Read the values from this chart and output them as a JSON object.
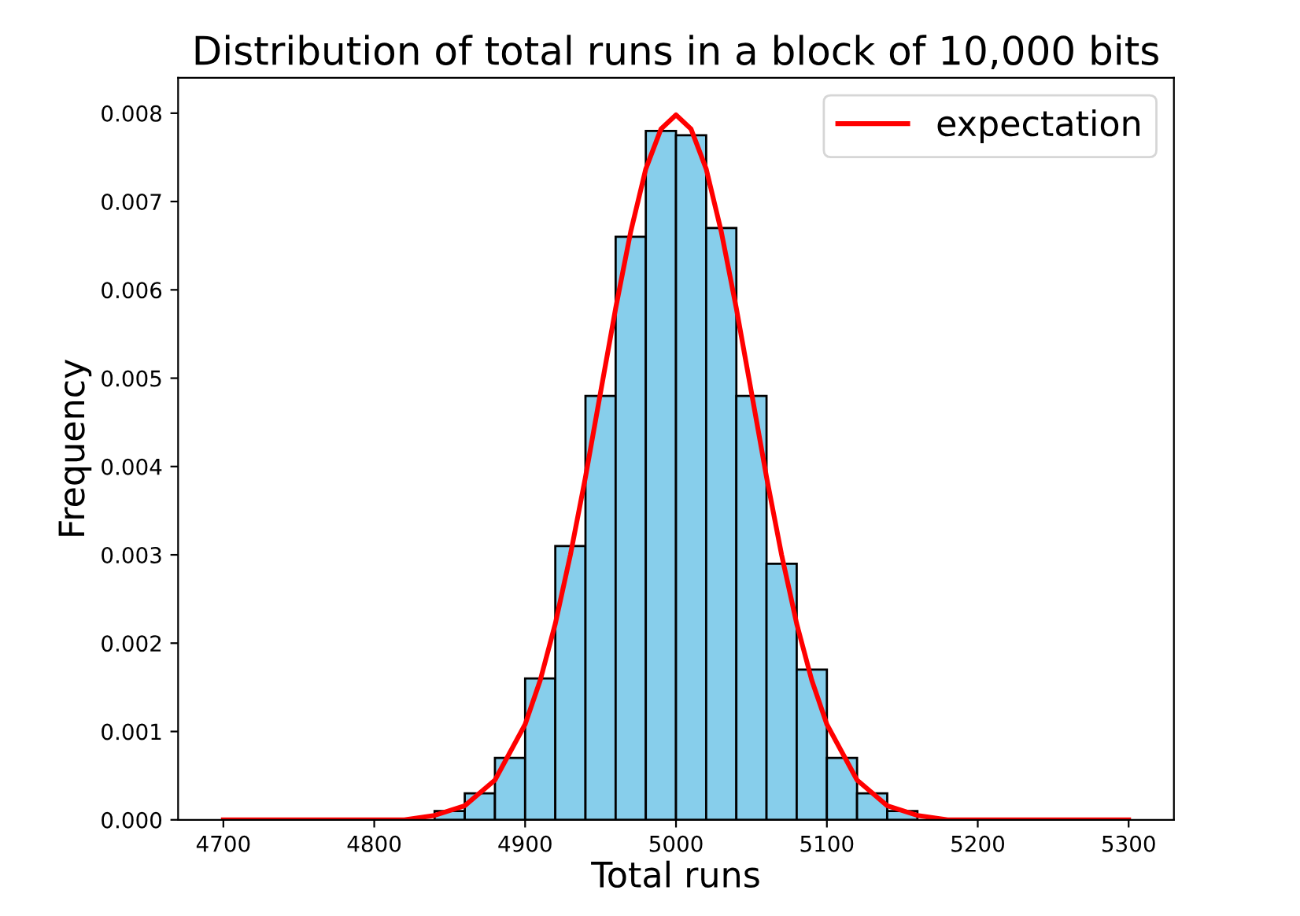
{
  "chart_data": {
    "type": "histogram",
    "title": "Distribution of total runs in a block of 10,000 bits",
    "xlabel": "Total runs",
    "ylabel": "Frequency",
    "bins": [
      4840,
      4860,
      4880,
      4900,
      4920,
      4940,
      4960,
      4980,
      5000,
      5020,
      5040,
      5060,
      5080,
      5100,
      5120,
      5140,
      5160
    ],
    "values": [
      0.0001,
      0.0003,
      0.0007,
      0.0016,
      0.0031,
      0.0048,
      0.0066,
      0.0078,
      0.00775,
      0.0067,
      0.0048,
      0.0029,
      0.0017,
      0.0007,
      0.0003,
      0.0001
    ],
    "color": "#87ceeb",
    "series": [
      {
        "name": "expectation",
        "type": "line",
        "color": "#ff0000",
        "x": [
          4700,
          4750,
          4800,
          4820,
          4840,
          4860,
          4880,
          4900,
          4910,
          4920,
          4930,
          4940,
          4950,
          4960,
          4970,
          4980,
          4990,
          5000,
          5010,
          5020,
          5030,
          5040,
          5050,
          5060,
          5070,
          5080,
          5090,
          5100,
          5120,
          5140,
          5160,
          5180,
          5200,
          5250,
          5300
        ],
        "values": [
          0,
          0,
          0,
          0,
          5e-05,
          0.00016,
          0.00045,
          0.00108,
          0.00158,
          0.00222,
          0.003,
          0.00388,
          0.00484,
          0.00579,
          0.00666,
          0.00737,
          0.00782,
          0.00798,
          0.00782,
          0.00737,
          0.00666,
          0.00579,
          0.00484,
          0.00388,
          0.003,
          0.00222,
          0.00158,
          0.00108,
          0.00045,
          0.00016,
          5e-05,
          0,
          0,
          0,
          0
        ]
      }
    ],
    "xlim": [
      4670,
      5330
    ],
    "ylim": [
      0,
      0.0084
    ],
    "xticks": [
      4700,
      4800,
      4900,
      5000,
      5100,
      5200,
      5300
    ],
    "yticks": [
      {
        "value": 0,
        "label": "0.000"
      },
      {
        "value": 0.001,
        "label": "0.001"
      },
      {
        "value": 0.002,
        "label": "0.002"
      },
      {
        "value": 0.003,
        "label": "0.003"
      },
      {
        "value": 0.004,
        "label": "0.004"
      },
      {
        "value": 0.005,
        "label": "0.005"
      },
      {
        "value": 0.006,
        "label": "0.006"
      },
      {
        "value": 0.007,
        "label": "0.007"
      },
      {
        "value": 0.008,
        "label": "0.008"
      }
    ],
    "legend": "top right",
    "grid": false
  }
}
